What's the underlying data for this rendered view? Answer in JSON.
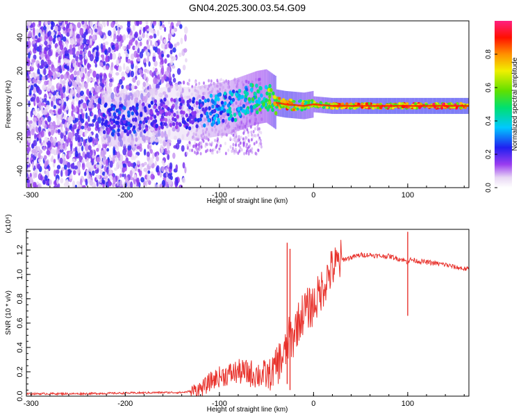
{
  "figure": {
    "title": "GN04.2025.300.03.54.G09"
  },
  "chart_data": [
    {
      "type": "heatmap",
      "title": "GN04.2025.300.03.54.G09",
      "xlabel": "Height of straight line (km)",
      "ylabel": "Frequency (Hz)",
      "xlim": [
        -305,
        165
      ],
      "ylim": [
        -50,
        50
      ],
      "x_ticks": [
        -300,
        -200,
        -100,
        0,
        100
      ],
      "x_tick_labels": [
        "-300",
        "-200",
        "-100",
        "0",
        "100"
      ],
      "y_ticks": [
        -40,
        -20,
        0,
        20,
        40
      ],
      "y_tick_labels": [
        "-40",
        "-20",
        "0",
        "20",
        "40"
      ],
      "colorbar": {
        "label": "Normalized spectral amplitude",
        "range": [
          0,
          1
        ],
        "ticks": [
          0.0,
          0.2,
          0.4,
          0.6,
          0.8
        ],
        "tick_labels": [
          "0.0",
          "0.2",
          "0.4",
          "0.6",
          "0.8"
        ],
        "colormap": "rainbow (white-violet-blue-cyan-green-yellow-orange-red-magenta)"
      },
      "ridge": {
        "description": "Dominant frequency ridge vs height",
        "x": [
          -220,
          -210,
          -150,
          -130,
          -110,
          -90,
          -70,
          -60,
          -50,
          -40,
          -30,
          -10,
          0,
          20,
          50,
          80,
          100,
          130,
          160
        ],
        "y": [
          -8,
          -10,
          -5,
          -6,
          -4,
          -2,
          2,
          4,
          5,
          1,
          0,
          -1,
          0,
          -1,
          -1,
          -1,
          -1,
          -1,
          -1
        ],
        "amplitude": [
          0.25,
          0.3,
          0.2,
          0.25,
          0.35,
          0.4,
          0.5,
          0.55,
          0.6,
          0.8,
          0.9,
          0.75,
          0.7,
          0.85,
          0.9,
          0.95,
          0.92,
          0.95,
          0.95
        ]
      },
      "noise_region": {
        "description": "Scattered low-amplitude violet speckle across full frequency range",
        "x_range": [
          -305,
          -135
        ],
        "amplitude_range": [
          0.05,
          0.25
        ]
      }
    },
    {
      "type": "line",
      "title": "",
      "xlabel": "Height of straight line (km)",
      "ylabel": "SNR (10 * v/v)",
      "y_scale_label": "(x10⁴)",
      "y_scale_factor": 10000,
      "xlim": [
        -305,
        165
      ],
      "ylim": [
        0,
        1.37
      ],
      "x_ticks": [
        -300,
        -200,
        -100,
        0,
        100
      ],
      "x_tick_labels": [
        "-300",
        "-200",
        "-100",
        "0",
        "100"
      ],
      "y_ticks": [
        0.0,
        0.2,
        0.4,
        0.6,
        0.8,
        1.0,
        1.2
      ],
      "y_tick_labels": [
        "0.0",
        "0.2",
        "0.4",
        "0.6",
        "0.8",
        "1.0",
        "1.2"
      ],
      "series": [
        {
          "name": "SNR",
          "color": "#e8322c",
          "x": [
            -305,
            -250,
            -200,
            -160,
            -140,
            -130,
            -120,
            -115,
            -110,
            -100,
            -90,
            -80,
            -70,
            -60,
            -50,
            -45,
            -40,
            -35,
            -30,
            -27,
            -25,
            -22,
            -20,
            -15,
            -10,
            -5,
            0,
            5,
            10,
            15,
            20,
            25,
            30,
            40,
            50,
            60,
            70,
            80,
            90,
            95,
            100,
            102,
            105,
            110,
            120,
            130,
            140,
            150,
            165
          ],
          "y": [
            0.02,
            0.02,
            0.025,
            0.03,
            0.03,
            0.04,
            0.06,
            0.08,
            0.12,
            0.16,
            0.18,
            0.2,
            0.19,
            0.18,
            0.17,
            0.18,
            0.25,
            0.3,
            0.35,
            0.45,
            0.5,
            0.45,
            0.55,
            0.62,
            0.7,
            0.72,
            0.75,
            0.82,
            0.9,
            0.98,
            1.05,
            1.08,
            1.12,
            1.14,
            1.16,
            1.16,
            1.15,
            1.15,
            1.13,
            1.12,
            1.1,
            1.12,
            1.12,
            1.11,
            1.1,
            1.09,
            1.08,
            1.06,
            1.04
          ]
        }
      ],
      "spikes": [
        {
          "x": -28,
          "y": 1.26,
          "min": 0.1
        },
        {
          "x": -25,
          "y": 1.21,
          "min": 0.05
        },
        {
          "x": 100,
          "y": 1.35,
          "min": 0.66
        }
      ]
    }
  ]
}
